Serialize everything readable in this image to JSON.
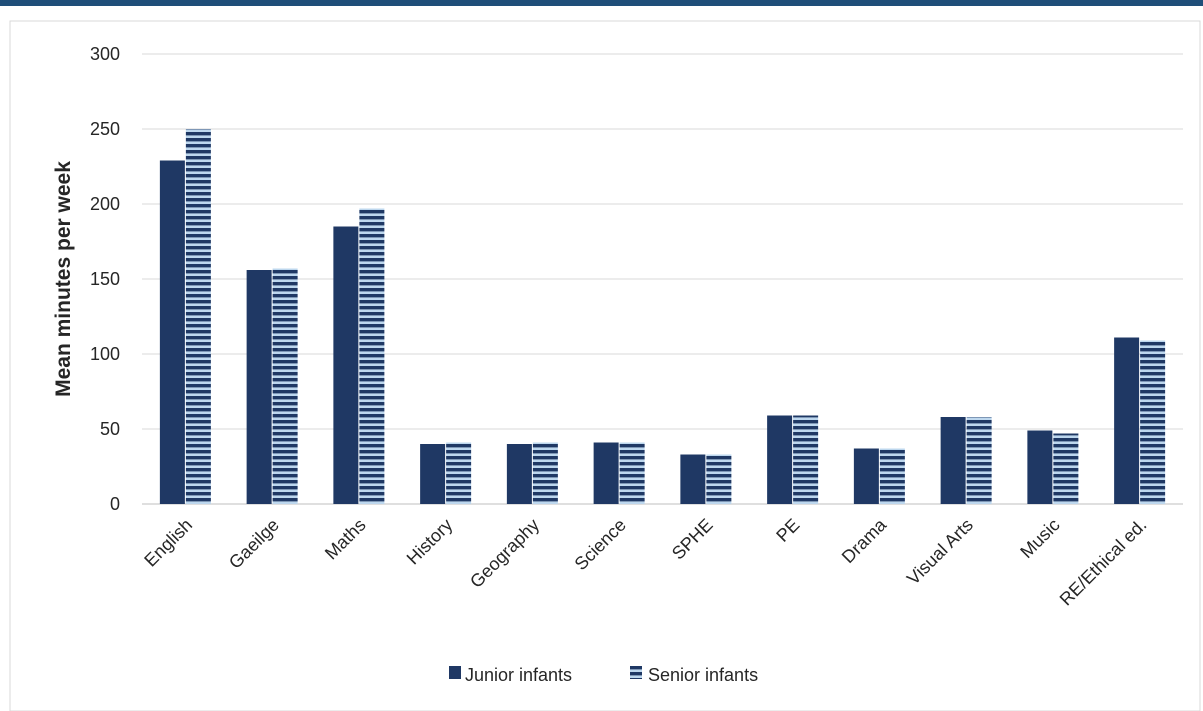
{
  "chart_data": {
    "type": "bar",
    "title": "",
    "xlabel": "",
    "ylabel": "Mean minutes per week",
    "ylim": [
      0,
      300
    ],
    "yticks": [
      0,
      50,
      100,
      150,
      200,
      250,
      300
    ],
    "grid": true,
    "legend_position": "bottom",
    "categories": [
      "English",
      "Gaeilge",
      "Maths",
      "History",
      "Geography",
      "Science",
      "SPHE",
      "PE",
      "Drama",
      "Visual Arts",
      "Music",
      "RE/Ethical ed."
    ],
    "series": [
      {
        "name": "Junior infants",
        "color": "#1f3864",
        "pattern": "solid",
        "values": [
          229,
          156,
          185,
          40,
          40,
          41,
          33,
          59,
          37,
          58,
          49,
          111
        ]
      },
      {
        "name": "Senior infants",
        "color": "#1f3864",
        "pattern_color": "#bdd7ee",
        "pattern": "horizontal-stripes",
        "values": [
          250,
          157,
          197,
          41,
          41,
          41,
          33,
          59,
          37,
          58,
          47,
          109
        ]
      }
    ]
  },
  "colors": {
    "top_rule": "#1f4e79",
    "grid": "#d9d9d9",
    "frame": "#d9d9d9",
    "baseline": "#bfbfbf"
  }
}
